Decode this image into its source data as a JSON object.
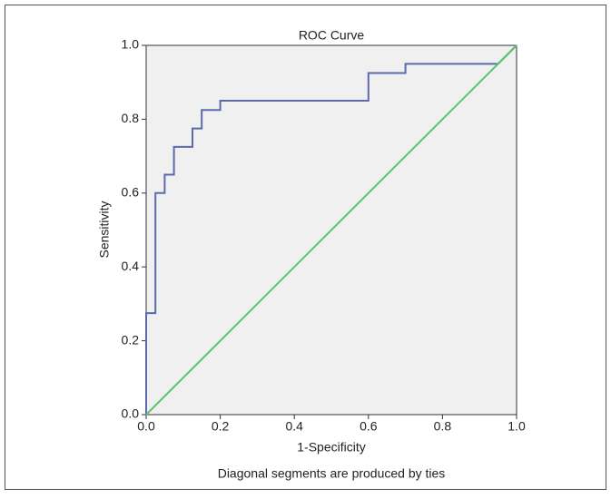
{
  "chart_data": {
    "type": "line",
    "title": "ROC Curve",
    "xlabel": "1-Specificity",
    "ylabel": "Sensitivity",
    "note": "Diagonal segments are produced by ties",
    "xlim": [
      0,
      1
    ],
    "ylim": [
      0,
      1
    ],
    "xticks": [
      {
        "value": 0,
        "label": "0.0"
      },
      0.2,
      0.4,
      0.6,
      0.8,
      {
        "value": 1,
        "label": "1.0"
      }
    ],
    "yticks": [
      {
        "value": 0,
        "label": "0.0"
      },
      0.2,
      0.4,
      0.6,
      0.8,
      {
        "value": 1,
        "label": "1.0"
      }
    ],
    "grid": false,
    "series": [
      {
        "color": "#5a6aab",
        "x": [
          0,
          0,
          0.025,
          0.025,
          0.05,
          0.05,
          0.075,
          0.075,
          0.125,
          0.125,
          0.15,
          0.15,
          0.2,
          0.2,
          0.6,
          0.6,
          0.7,
          0.7,
          0.95,
          1
        ],
        "values": [
          0,
          0.275,
          0.275,
          0.6,
          0.6,
          0.65,
          0.65,
          0.725,
          0.725,
          0.775,
          0.775,
          0.825,
          0.825,
          0.85,
          0.85,
          0.925,
          0.925,
          0.95,
          0.95,
          1
        ]
      },
      {
        "color": "#5cc46a",
        "x": [
          0,
          1
        ],
        "values": [
          0,
          1
        ]
      }
    ]
  }
}
